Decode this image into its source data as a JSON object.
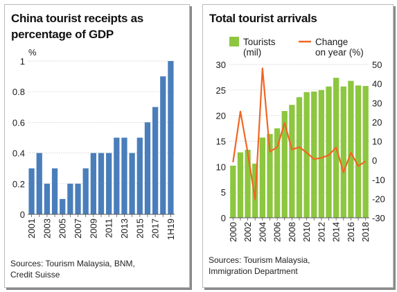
{
  "chart_data": [
    {
      "type": "bar",
      "title": "China tourist receipts as percentage of GDP",
      "ylabel": "%",
      "ylim": [
        0,
        1
      ],
      "yticks": [
        "0",
        "0.2",
        "0.4",
        "0.6",
        "0.8",
        "1"
      ],
      "categories": [
        "2001",
        "2002",
        "2003",
        "2004",
        "2005",
        "2006",
        "2007",
        "2008",
        "2009",
        "2010",
        "2011",
        "2012",
        "2013",
        "2014",
        "2015",
        "2016",
        "2017",
        "2018",
        "1H19"
      ],
      "xtick_labels": [
        "2001",
        "2003",
        "2005",
        "2007",
        "2009",
        "2011",
        "2013",
        "2015",
        "2017",
        "1H19"
      ],
      "values": [
        0.3,
        0.4,
        0.2,
        0.3,
        0.1,
        0.2,
        0.2,
        0.3,
        0.4,
        0.4,
        0.4,
        0.5,
        0.5,
        0.4,
        0.5,
        0.6,
        0.7,
        0.9,
        1.0
      ],
      "bar_color": "#4a7ebb",
      "grid": true,
      "source": "Sources: Tourism Malaysia, BNM, Credit Suisse"
    },
    {
      "type": "bar+line",
      "title": "Total tourist arrivals",
      "categories": [
        "2000",
        "2001",
        "2002",
        "2003",
        "2004",
        "2005",
        "2006",
        "2007",
        "2008",
        "2009",
        "2010",
        "2011",
        "2012",
        "2013",
        "2014",
        "2015",
        "2016",
        "2017",
        "2018"
      ],
      "xtick_labels": [
        "2000",
        "2002",
        "2004",
        "2006",
        "2008",
        "2010",
        "2012",
        "2014",
        "2016",
        "2018"
      ],
      "series": [
        {
          "name": "Tourists (mil)",
          "kind": "bar",
          "axis": "left",
          "color": "#8dc63f",
          "values": [
            10.2,
            12.8,
            13.3,
            10.6,
            15.7,
            16.4,
            17.5,
            20.9,
            22.1,
            23.6,
            24.6,
            24.7,
            25.0,
            25.7,
            27.4,
            25.7,
            26.8,
            25.9,
            25.8
          ]
        },
        {
          "name": "Change on year (%)",
          "kind": "line",
          "axis": "right",
          "color": "#f26522",
          "values": [
            -1,
            25.5,
            4,
            -20.5,
            48,
            4.5,
            6.8,
            19.5,
            5.6,
            6.9,
            4.0,
            0.6,
            1.3,
            2.7,
            6.7,
            -6.3,
            4.0,
            -3.0,
            -0.5
          ]
        }
      ],
      "legend": {
        "tourists": "Tourists (mil)",
        "change": "Change on year (%)"
      },
      "ylim_left": [
        0,
        30
      ],
      "yticks_left": [
        "0",
        "5",
        "10",
        "15",
        "20",
        "25",
        "30"
      ],
      "ylim_right": [
        -30,
        50
      ],
      "yticks_right": [
        "-30",
        "-20",
        "-10",
        "0",
        "10",
        "20",
        "30",
        "40",
        "50"
      ],
      "grid": true,
      "source": "Sources: Tourism Malaysia, Immigration Department"
    }
  ],
  "left_title_lines": [
    "China tourist receipts as",
    "percentage of GDP"
  ],
  "left_source_lines": [
    "Sources: Tourism Malaysia, BNM,",
    "Credit Suisse"
  ],
  "right_title": "Total tourist arrivals",
  "right_source_lines": [
    "Sources: Tourism Malaysia,",
    "Immigration Department"
  ],
  "right_legend": {
    "tourists_lines": [
      "Tourists",
      "(mil)"
    ],
    "change_lines": [
      "Change",
      "on year (%)"
    ]
  }
}
